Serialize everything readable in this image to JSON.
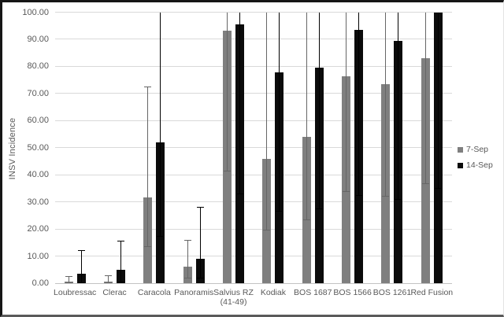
{
  "chart_data": {
    "type": "bar",
    "title": "",
    "xlabel": "",
    "ylabel": "INSV Incidence",
    "ylim": [
      0,
      100
    ],
    "grid": true,
    "legend_position": "right",
    "y_ticks": [
      "0.00",
      "10.00",
      "20.00",
      "30.00",
      "40.00",
      "50.00",
      "60.00",
      "70.00",
      "80.00",
      "90.00",
      "100.00"
    ],
    "categories": [
      "Loubressac",
      "Clerac",
      "Caracola",
      "Panoramis",
      "Salvius RZ (41-49)",
      "Kodiak",
      "BOS 1687",
      "BOS 1566",
      "BOS 1261",
      "Red Fusion"
    ],
    "series": [
      {
        "name": "7-Sep",
        "color": "#7f7f7f",
        "error_color": "#666666",
        "values": [
          0.7,
          0.7,
          31.6,
          6.1,
          93.1,
          45.8,
          54.0,
          76.3,
          73.5,
          83.0
        ],
        "error_low": [
          0.3,
          0.3,
          13.7,
          2.0,
          41.6,
          19.8,
          23.4,
          33.9,
          32.2,
          37.0
        ],
        "error_high": [
          2.6,
          2.9,
          72.6,
          16.0,
          100,
          100,
          100,
          100,
          100,
          100
        ]
      },
      {
        "name": "14-Sep",
        "color": "#0b0b0b",
        "error_color": "#000000",
        "values": [
          3.4,
          5.0,
          52.0,
          9.0,
          95.4,
          77.7,
          79.5,
          93.6,
          89.5,
          100
        ],
        "error_low": [
          0.3,
          0.5,
          17.4,
          2.1,
          33.2,
          26.6,
          27.6,
          32.4,
          31.0,
          35.0
        ],
        "error_high": [
          12.2,
          15.7,
          100,
          28.2,
          100,
          100,
          100,
          100,
          100,
          100
        ]
      }
    ]
  }
}
